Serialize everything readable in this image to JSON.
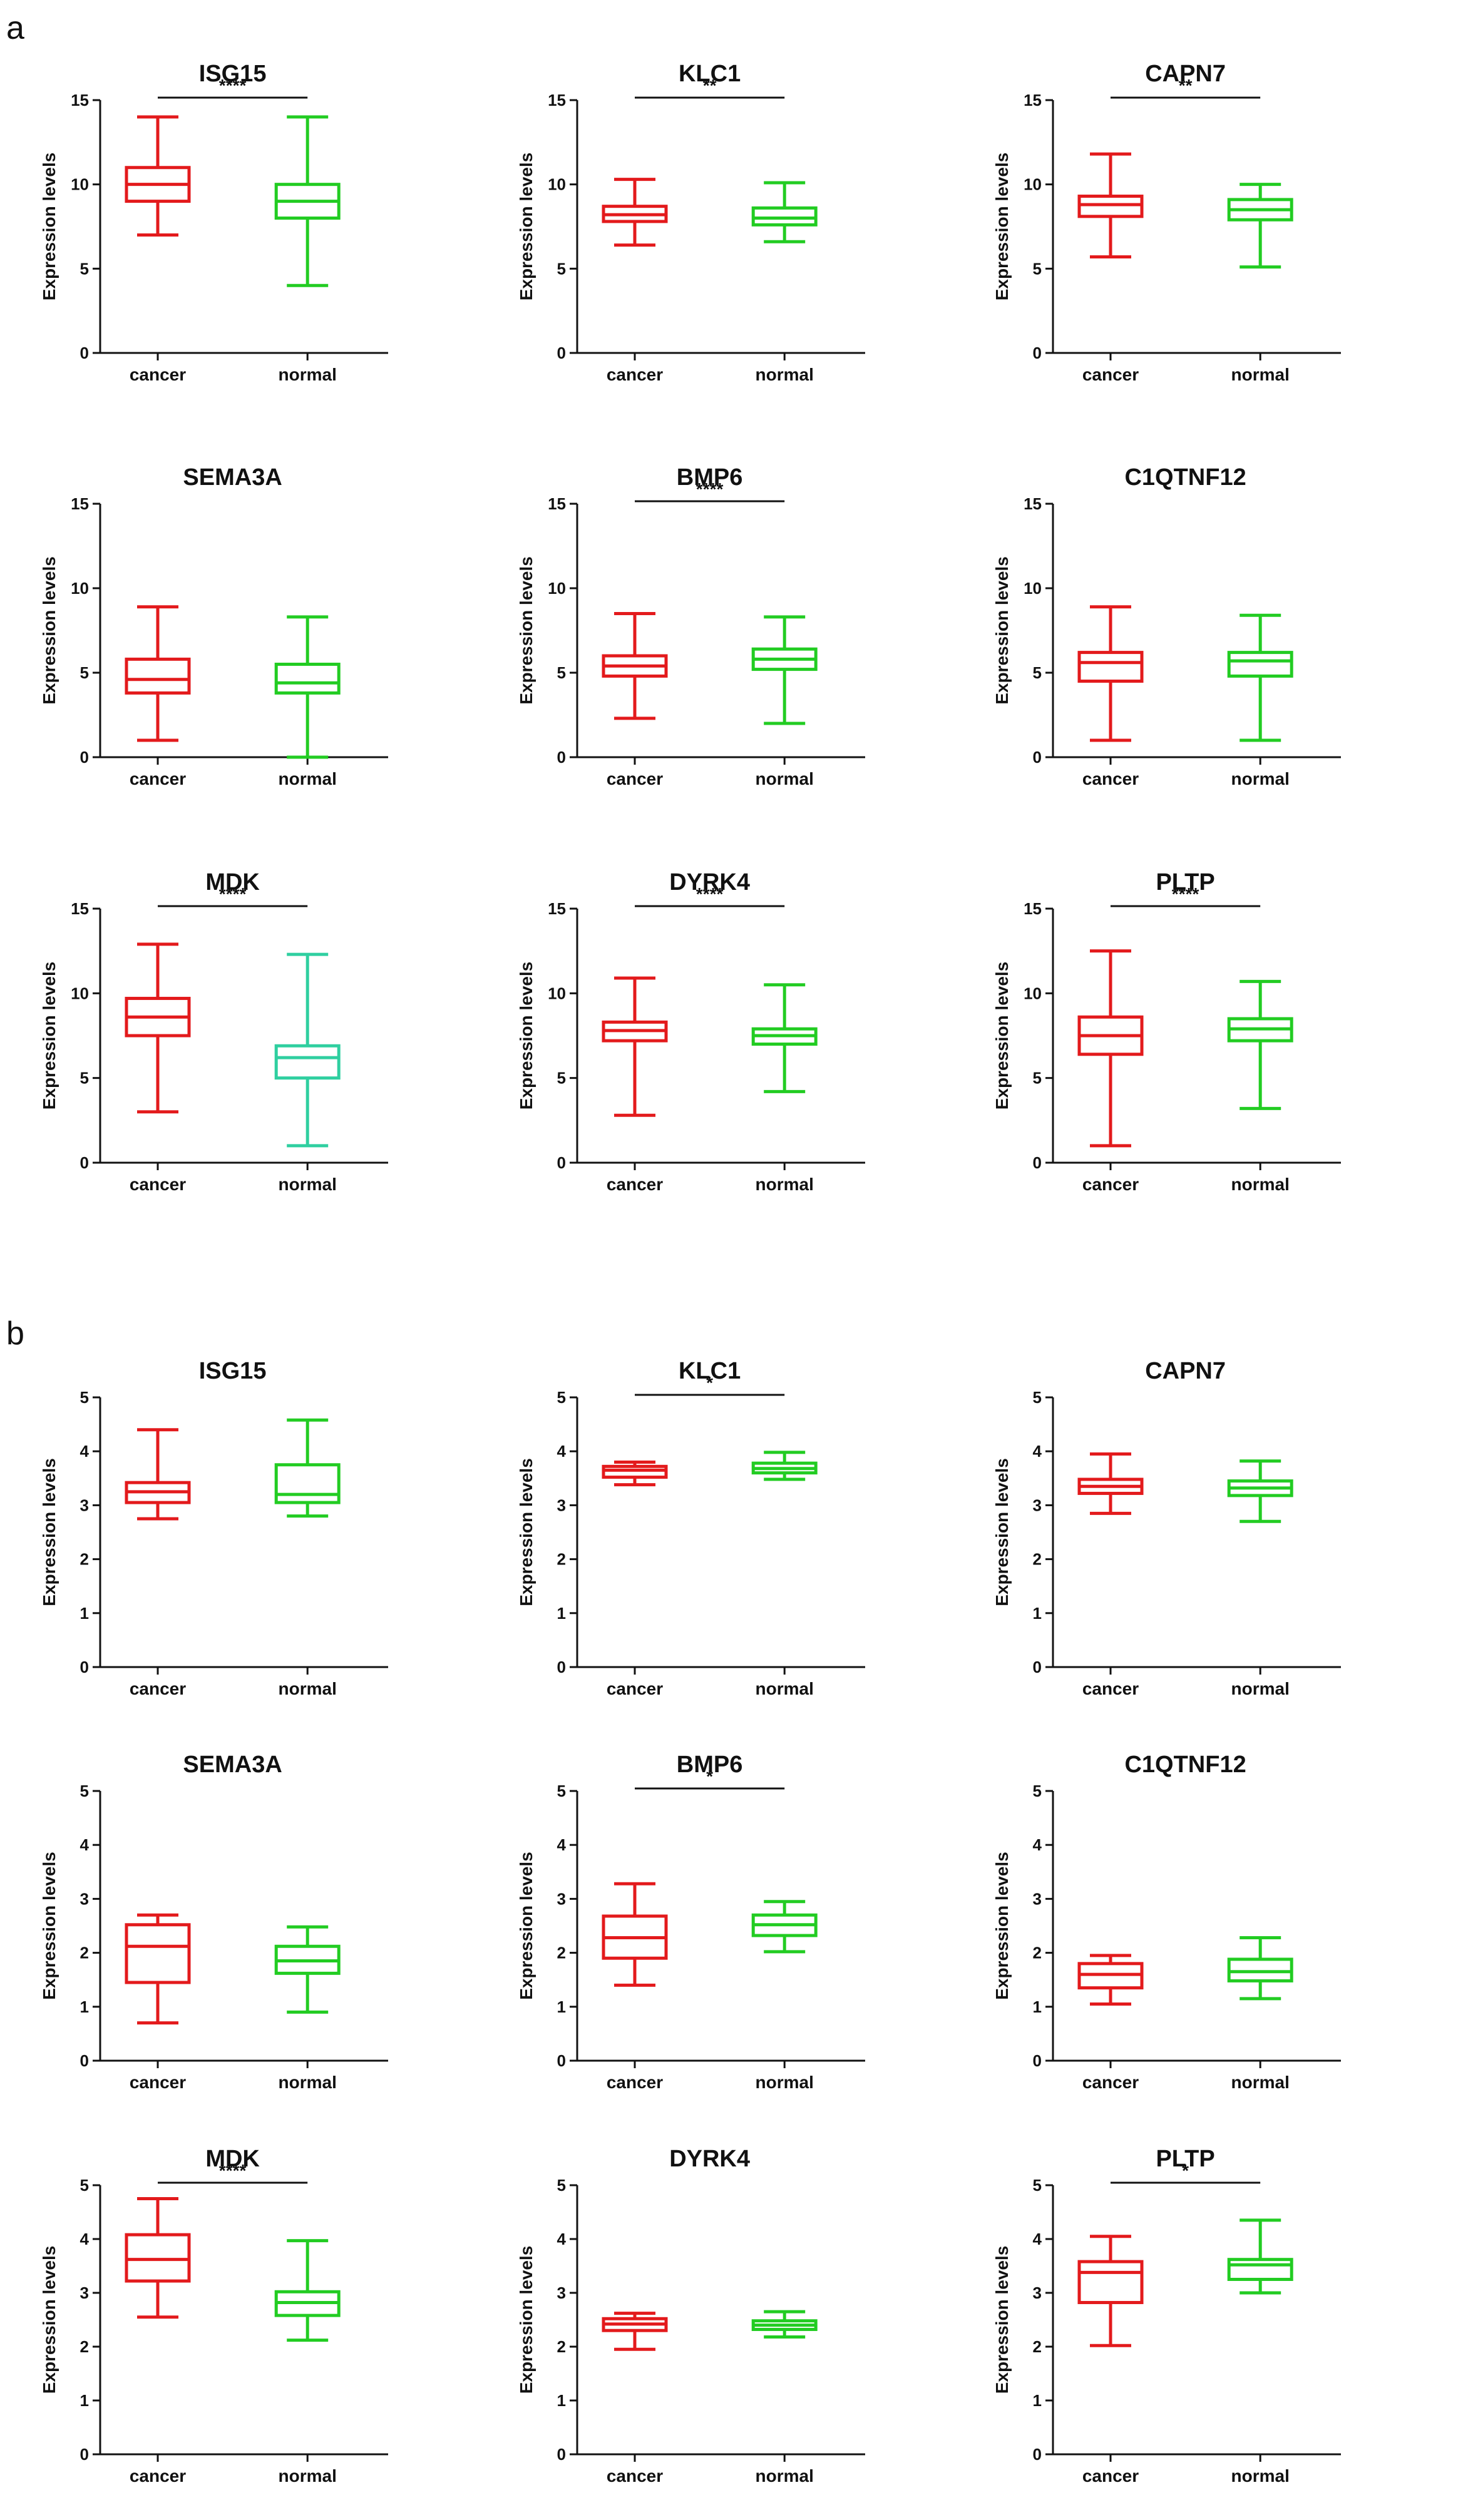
{
  "panels": [
    {
      "label": "a"
    },
    {
      "label": "b"
    }
  ],
  "colors": {
    "cancer": "#e31a1c",
    "normal": "#22cc22",
    "normal_alt": "#2fcfa0",
    "axis": "#111111"
  },
  "chart_data": [
    {
      "panel": "a",
      "type": "box",
      "title": "ISG15",
      "categories": [
        "cancer",
        "normal"
      ],
      "xlabel": "",
      "ylabel": "Expression levels",
      "ylim": [
        0,
        15
      ],
      "yticks": [
        0,
        5,
        10,
        15
      ],
      "boxes": [
        {
          "name": "cancer",
          "min": 7,
          "q1": 9,
          "median": 10,
          "q3": 11,
          "max": 14
        },
        {
          "name": "normal",
          "min": 4,
          "q1": 8,
          "median": 9,
          "q3": 10,
          "max": 14
        }
      ],
      "significance": "****"
    },
    {
      "panel": "a",
      "type": "box",
      "title": "KLC1",
      "categories": [
        "cancer",
        "normal"
      ],
      "xlabel": "",
      "ylabel": "Expression levels",
      "ylim": [
        0,
        15
      ],
      "yticks": [
        0,
        5,
        10,
        15
      ],
      "boxes": [
        {
          "name": "cancer",
          "min": 6.4,
          "q1": 7.8,
          "median": 8.2,
          "q3": 8.7,
          "max": 10.3
        },
        {
          "name": "normal",
          "min": 6.6,
          "q1": 7.6,
          "median": 8.0,
          "q3": 8.6,
          "max": 10.1
        }
      ],
      "significance": "**"
    },
    {
      "panel": "a",
      "type": "box",
      "title": "CAPN7",
      "categories": [
        "cancer",
        "normal"
      ],
      "xlabel": "",
      "ylabel": "Expression levels",
      "ylim": [
        0,
        15
      ],
      "yticks": [
        0,
        5,
        10,
        15
      ],
      "boxes": [
        {
          "name": "cancer",
          "min": 5.7,
          "q1": 8.1,
          "median": 8.8,
          "q3": 9.3,
          "max": 11.8
        },
        {
          "name": "normal",
          "min": 5.1,
          "q1": 7.9,
          "median": 8.5,
          "q3": 9.1,
          "max": 10.0
        }
      ],
      "significance": "**"
    },
    {
      "panel": "a",
      "type": "box",
      "title": "SEMA3A",
      "categories": [
        "cancer",
        "normal"
      ],
      "xlabel": "",
      "ylabel": "Expression levels",
      "ylim": [
        0,
        15
      ],
      "yticks": [
        0,
        5,
        10,
        15
      ],
      "boxes": [
        {
          "name": "cancer",
          "min": 1.0,
          "q1": 3.8,
          "median": 4.6,
          "q3": 5.8,
          "max": 8.9
        },
        {
          "name": "normal",
          "min": 0.0,
          "q1": 3.8,
          "median": 4.4,
          "q3": 5.5,
          "max": 8.3
        }
      ],
      "significance": ""
    },
    {
      "panel": "a",
      "type": "box",
      "title": "BMP6",
      "categories": [
        "cancer",
        "normal"
      ],
      "xlabel": "",
      "ylabel": "Expression levels",
      "ylim": [
        0,
        15
      ],
      "yticks": [
        0,
        5,
        10,
        15
      ],
      "boxes": [
        {
          "name": "cancer",
          "min": 2.3,
          "q1": 4.8,
          "median": 5.4,
          "q3": 6.0,
          "max": 8.5
        },
        {
          "name": "normal",
          "min": 2.0,
          "q1": 5.2,
          "median": 5.8,
          "q3": 6.4,
          "max": 8.3
        }
      ],
      "significance": "****"
    },
    {
      "panel": "a",
      "type": "box",
      "title": "C1QTNF12",
      "categories": [
        "cancer",
        "normal"
      ],
      "xlabel": "",
      "ylabel": "Expression levels",
      "ylim": [
        0,
        15
      ],
      "yticks": [
        0,
        5,
        10,
        15
      ],
      "boxes": [
        {
          "name": "cancer",
          "min": 1.0,
          "q1": 4.5,
          "median": 5.6,
          "q3": 6.2,
          "max": 8.9
        },
        {
          "name": "normal",
          "min": 1.0,
          "q1": 4.8,
          "median": 5.7,
          "q3": 6.2,
          "max": 8.4
        }
      ],
      "significance": ""
    },
    {
      "panel": "a",
      "type": "box",
      "title": "MDK",
      "categories": [
        "cancer",
        "normal"
      ],
      "xlabel": "",
      "ylabel": "Expression levels",
      "ylim": [
        0,
        15
      ],
      "yticks": [
        0,
        5,
        10,
        15
      ],
      "boxes": [
        {
          "name": "cancer",
          "min": 3.0,
          "q1": 7.5,
          "median": 8.6,
          "q3": 9.7,
          "max": 12.9
        },
        {
          "name": "normal",
          "min": 1.0,
          "q1": 5.0,
          "median": 6.2,
          "q3": 6.9,
          "max": 12.3,
          "color": "normal_alt"
        }
      ],
      "significance": "****"
    },
    {
      "panel": "a",
      "type": "box",
      "title": "DYRK4",
      "categories": [
        "cancer",
        "normal"
      ],
      "xlabel": "",
      "ylabel": "Expression levels",
      "ylim": [
        0,
        15
      ],
      "yticks": [
        0,
        5,
        10,
        15
      ],
      "boxes": [
        {
          "name": "cancer",
          "min": 2.8,
          "q1": 7.2,
          "median": 7.8,
          "q3": 8.3,
          "max": 10.9
        },
        {
          "name": "normal",
          "min": 4.2,
          "q1": 7.0,
          "median": 7.5,
          "q3": 7.9,
          "max": 10.5
        }
      ],
      "significance": "****"
    },
    {
      "panel": "a",
      "type": "box",
      "title": "PLTP",
      "categories": [
        "cancer",
        "normal"
      ],
      "xlabel": "",
      "ylabel": "Expression levels",
      "ylim": [
        0,
        15
      ],
      "yticks": [
        0,
        5,
        10,
        15
      ],
      "boxes": [
        {
          "name": "cancer",
          "min": 1.0,
          "q1": 6.4,
          "median": 7.5,
          "q3": 8.6,
          "max": 12.5
        },
        {
          "name": "normal",
          "min": 3.2,
          "q1": 7.2,
          "median": 7.9,
          "q3": 8.5,
          "max": 10.7
        }
      ],
      "significance": "****"
    },
    {
      "panel": "b",
      "type": "box",
      "title": "ISG15",
      "categories": [
        "cancer",
        "normal"
      ],
      "xlabel": "",
      "ylabel": "Expression levels",
      "ylim": [
        0,
        5
      ],
      "yticks": [
        0,
        1,
        2,
        3,
        4,
        5
      ],
      "boxes": [
        {
          "name": "cancer",
          "min": 2.75,
          "q1": 3.05,
          "median": 3.25,
          "q3": 3.42,
          "max": 4.4
        },
        {
          "name": "normal",
          "min": 2.8,
          "q1": 3.05,
          "median": 3.2,
          "q3": 3.75,
          "max": 4.58
        }
      ],
      "significance": ""
    },
    {
      "panel": "b",
      "type": "box",
      "title": "KLC1",
      "categories": [
        "cancer",
        "normal"
      ],
      "xlabel": "",
      "ylabel": "Expression levels",
      "ylim": [
        0,
        5
      ],
      "yticks": [
        0,
        1,
        2,
        3,
        4,
        5
      ],
      "boxes": [
        {
          "name": "cancer",
          "min": 3.38,
          "q1": 3.52,
          "median": 3.65,
          "q3": 3.72,
          "max": 3.8
        },
        {
          "name": "normal",
          "min": 3.48,
          "q1": 3.6,
          "median": 3.68,
          "q3": 3.78,
          "max": 3.98
        }
      ],
      "significance": "*"
    },
    {
      "panel": "b",
      "type": "box",
      "title": "CAPN7",
      "categories": [
        "cancer",
        "normal"
      ],
      "xlabel": "",
      "ylabel": "Expression levels",
      "ylim": [
        0,
        5
      ],
      "yticks": [
        0,
        1,
        2,
        3,
        4,
        5
      ],
      "boxes": [
        {
          "name": "cancer",
          "min": 2.85,
          "q1": 3.22,
          "median": 3.35,
          "q3": 3.48,
          "max": 3.95
        },
        {
          "name": "normal",
          "min": 2.7,
          "q1": 3.18,
          "median": 3.32,
          "q3": 3.45,
          "max": 3.82
        }
      ],
      "significance": ""
    },
    {
      "panel": "b",
      "type": "box",
      "title": "SEMA3A",
      "categories": [
        "cancer",
        "normal"
      ],
      "xlabel": "",
      "ylabel": "Expression levels",
      "ylim": [
        0,
        5
      ],
      "yticks": [
        0,
        1,
        2,
        3,
        4,
        5
      ],
      "boxes": [
        {
          "name": "cancer",
          "min": 0.7,
          "q1": 1.45,
          "median": 2.12,
          "q3": 2.52,
          "max": 2.7
        },
        {
          "name": "normal",
          "min": 0.9,
          "q1": 1.62,
          "median": 1.85,
          "q3": 2.12,
          "max": 2.48
        }
      ],
      "significance": ""
    },
    {
      "panel": "b",
      "type": "box",
      "title": "BMP6",
      "categories": [
        "cancer",
        "normal"
      ],
      "xlabel": "",
      "ylabel": "Expression levels",
      "ylim": [
        0,
        5
      ],
      "yticks": [
        0,
        1,
        2,
        3,
        4,
        5
      ],
      "boxes": [
        {
          "name": "cancer",
          "min": 1.4,
          "q1": 1.9,
          "median": 2.28,
          "q3": 2.68,
          "max": 3.28
        },
        {
          "name": "normal",
          "min": 2.02,
          "q1": 2.32,
          "median": 2.52,
          "q3": 2.7,
          "max": 2.95
        }
      ],
      "significance": "*"
    },
    {
      "panel": "b",
      "type": "box",
      "title": "C1QTNF12",
      "categories": [
        "cancer",
        "normal"
      ],
      "xlabel": "",
      "ylabel": "Expression levels",
      "ylim": [
        0,
        5
      ],
      "yticks": [
        0,
        1,
        2,
        3,
        4,
        5
      ],
      "boxes": [
        {
          "name": "cancer",
          "min": 1.05,
          "q1": 1.35,
          "median": 1.6,
          "q3": 1.8,
          "max": 1.95
        },
        {
          "name": "normal",
          "min": 1.15,
          "q1": 1.48,
          "median": 1.65,
          "q3": 1.88,
          "max": 2.28
        }
      ],
      "significance": ""
    },
    {
      "panel": "b",
      "type": "box",
      "title": "MDK",
      "categories": [
        "cancer",
        "normal"
      ],
      "xlabel": "",
      "ylabel": "Expression levels",
      "ylim": [
        0,
        5
      ],
      "yticks": [
        0,
        1,
        2,
        3,
        4,
        5
      ],
      "boxes": [
        {
          "name": "cancer",
          "min": 2.55,
          "q1": 3.22,
          "median": 3.62,
          "q3": 4.08,
          "max": 4.75
        },
        {
          "name": "normal",
          "min": 2.12,
          "q1": 2.58,
          "median": 2.82,
          "q3": 3.02,
          "max": 3.97
        }
      ],
      "significance": "****"
    },
    {
      "panel": "b",
      "type": "box",
      "title": "DYRK4",
      "categories": [
        "cancer",
        "normal"
      ],
      "xlabel": "",
      "ylabel": "Expression levels",
      "ylim": [
        0,
        5
      ],
      "yticks": [
        0,
        1,
        2,
        3,
        4,
        5
      ],
      "boxes": [
        {
          "name": "cancer",
          "min": 1.95,
          "q1": 2.3,
          "median": 2.42,
          "q3": 2.52,
          "max": 2.62
        },
        {
          "name": "normal",
          "min": 2.18,
          "q1": 2.32,
          "median": 2.4,
          "q3": 2.48,
          "max": 2.65
        }
      ],
      "significance": ""
    },
    {
      "panel": "b",
      "type": "box",
      "title": "PLTP",
      "categories": [
        "cancer",
        "normal"
      ],
      "xlabel": "",
      "ylabel": "Expression levels",
      "ylim": [
        0,
        5
      ],
      "yticks": [
        0,
        1,
        2,
        3,
        4,
        5
      ],
      "boxes": [
        {
          "name": "cancer",
          "min": 2.02,
          "q1": 2.82,
          "median": 3.38,
          "q3": 3.58,
          "max": 4.05
        },
        {
          "name": "normal",
          "min": 3.0,
          "q1": 3.25,
          "median": 3.52,
          "q3": 3.62,
          "max": 4.35
        }
      ],
      "significance": "*"
    }
  ]
}
